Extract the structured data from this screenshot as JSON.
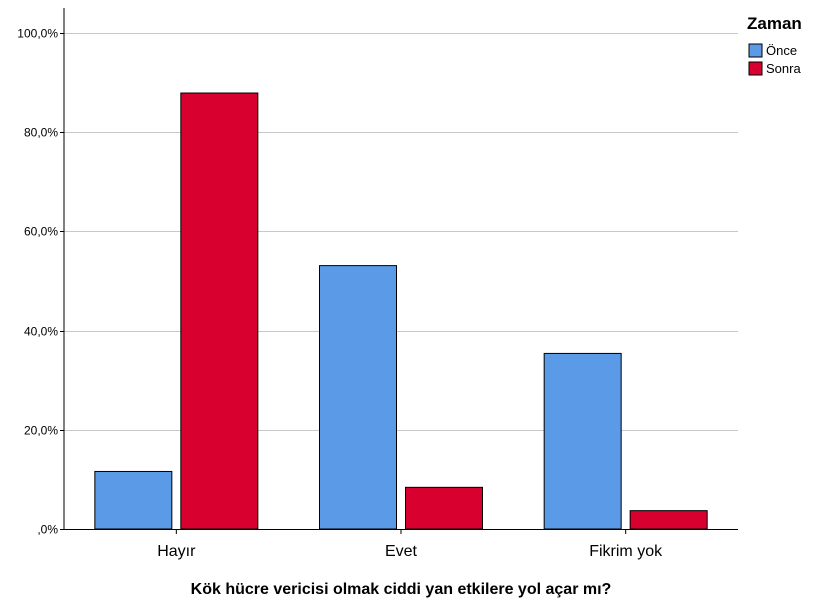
{
  "chart_data": {
    "type": "bar",
    "title": "",
    "xlabel": "Kök hücre vericisi olmak ciddi yan etkilere yol açar mı?",
    "ylabel": "",
    "categories": [
      "Hayır",
      "Evet",
      "Fikrim yok"
    ],
    "series": [
      {
        "name": "Önce",
        "values": [
          11.6,
          53.1,
          35.4
        ],
        "color": "#5a9ae6"
      },
      {
        "name": "Sonra",
        "values": [
          87.9,
          8.4,
          3.7
        ],
        "color": "#d7002f"
      }
    ],
    "ylim": [
      0,
      100
    ],
    "yticks": [
      0,
      20,
      40,
      60,
      80,
      100
    ],
    "ytick_labels": [
      ",0%",
      "20,0%",
      "40,0%",
      "60,0%",
      "80,0%",
      "100,0%"
    ],
    "grid": true,
    "legend": {
      "title": "Zaman",
      "placement": "top-right"
    }
  }
}
